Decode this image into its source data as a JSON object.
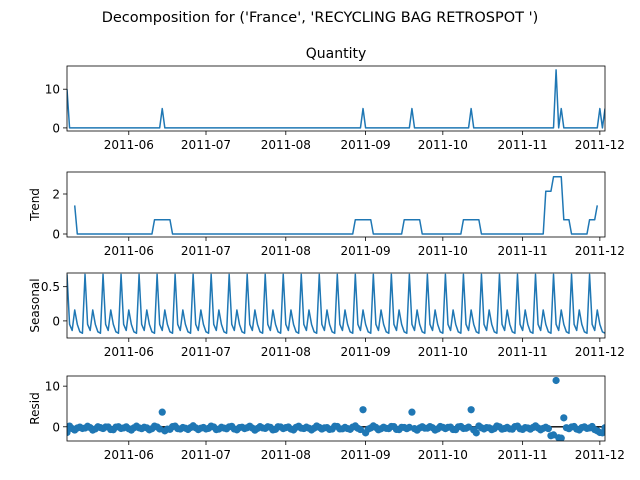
{
  "figure": {
    "suptitle": "Decomposition for ('France', 'RECYCLING BAG RETROSPOT ')"
  },
  "colors": {
    "series": "#1f77b4",
    "axis": "#000000",
    "zero_line": "#000000"
  },
  "chart_data": [
    {
      "type": "line",
      "title": "Quantity",
      "ylabel": "",
      "xlim": [
        "2011-05-08",
        "2011-12-03"
      ],
      "ylim": [
        -0.8,
        16
      ],
      "xticks": [
        "2011-06",
        "2011-07",
        "2011-08",
        "2011-09",
        "2011-10",
        "2011-11",
        "2011-12"
      ],
      "yticks": [
        0,
        10
      ],
      "x": [
        "2011-05-08",
        "2011-05-09",
        "2011-06-13",
        "2011-06-14",
        "2011-06-15",
        "2011-08-30",
        "2011-08-31",
        "2011-09-01",
        "2011-09-18",
        "2011-09-19",
        "2011-09-20",
        "2011-10-11",
        "2011-10-12",
        "2011-10-13",
        "2011-11-13",
        "2011-11-14",
        "2011-11-15",
        "2011-11-16",
        "2011-11-17",
        "2011-11-18",
        "2011-11-30",
        "2011-12-01",
        "2011-12-02",
        "2011-12-03"
      ],
      "values": [
        10,
        0,
        0,
        5,
        0,
        0,
        5,
        0,
        0,
        5,
        0,
        0,
        5,
        0,
        0,
        15,
        0,
        5,
        0,
        0,
        0,
        5,
        0,
        5
      ]
    },
    {
      "type": "line",
      "title": "",
      "ylabel": "Trend",
      "xlim": [
        "2011-05-08",
        "2011-12-03"
      ],
      "ylim": [
        -0.15,
        3.1
      ],
      "xticks": [
        "2011-06",
        "2011-07",
        "2011-08",
        "2011-09",
        "2011-10",
        "2011-11",
        "2011-12"
      ],
      "yticks": [
        0,
        2
      ],
      "x": [
        "2011-05-11",
        "2011-05-12",
        "2011-06-10",
        "2011-06-11",
        "2011-06-17",
        "2011-06-18",
        "2011-08-27",
        "2011-08-28",
        "2011-09-03",
        "2011-09-04",
        "2011-09-15",
        "2011-09-16",
        "2011-09-22",
        "2011-09-23",
        "2011-10-08",
        "2011-10-09",
        "2011-10-15",
        "2011-10-16",
        "2011-11-09",
        "2011-11-10",
        "2011-11-12",
        "2011-11-13",
        "2011-11-16",
        "2011-11-17",
        "2011-11-19",
        "2011-11-20",
        "2011-11-26",
        "2011-11-27",
        "2011-11-29",
        "2011-11-30"
      ],
      "values": [
        1.43,
        0,
        0,
        0.71,
        0.71,
        0,
        0,
        0.71,
        0.71,
        0,
        0,
        0.71,
        0.71,
        0,
        0,
        0.71,
        0.71,
        0,
        0,
        2.14,
        2.14,
        2.86,
        2.86,
        0.71,
        0.71,
        0,
        0,
        0.71,
        0.71,
        1.43
      ]
    },
    {
      "type": "line",
      "title": "",
      "ylabel": "Seasonal",
      "xlim": [
        "2011-05-08",
        "2011-12-03"
      ],
      "ylim": [
        -0.25,
        0.7
      ],
      "xticks": [
        "2011-06",
        "2011-07",
        "2011-08",
        "2011-09",
        "2011-10",
        "2011-11",
        "2011-12"
      ],
      "yticks": [
        0.0,
        0.5
      ],
      "period_days": 7,
      "weekly_pattern": [
        0.68,
        -0.05,
        -0.14,
        0.16,
        -0.05,
        -0.16,
        -0.18
      ],
      "pattern_start": "2011-05-08"
    },
    {
      "type": "scatter",
      "title": "",
      "ylabel": "Resid",
      "xlim": [
        "2011-05-08",
        "2011-12-03"
      ],
      "ylim": [
        -3.5,
        12.5
      ],
      "xticks": [
        "2011-06",
        "2011-07",
        "2011-08",
        "2011-09",
        "2011-10",
        "2011-11",
        "2011-12"
      ],
      "yticks": [
        0,
        10
      ],
      "zero_line": true,
      "x_start": "2011-05-08",
      "x_end": "2011-12-03",
      "baseline_value": -0.3,
      "outliers": [
        {
          "x": "2011-05-08",
          "y": -1.4
        },
        {
          "x": "2011-06-14",
          "y": 3.6
        },
        {
          "x": "2011-08-31",
          "y": 4.2
        },
        {
          "x": "2011-09-19",
          "y": 3.6
        },
        {
          "x": "2011-10-12",
          "y": 4.2
        },
        {
          "x": "2011-11-14",
          "y": 11.4
        },
        {
          "x": "2011-11-12",
          "y": -2.2
        },
        {
          "x": "2011-11-13",
          "y": -2.0
        },
        {
          "x": "2011-11-15",
          "y": -2.7
        },
        {
          "x": "2011-11-16",
          "y": -2.8
        },
        {
          "x": "2011-11-17",
          "y": 2.2
        },
        {
          "x": "2011-11-29",
          "y": -0.7
        },
        {
          "x": "2011-11-30",
          "y": -1.0
        },
        {
          "x": "2011-12-01",
          "y": -1.4
        },
        {
          "x": "2011-12-02",
          "y": -1.5
        },
        {
          "x": "2011-09-01",
          "y": -1.5
        },
        {
          "x": "2011-10-14",
          "y": -1.5
        },
        {
          "x": "2011-06-15",
          "y": -1.0
        }
      ]
    }
  ]
}
